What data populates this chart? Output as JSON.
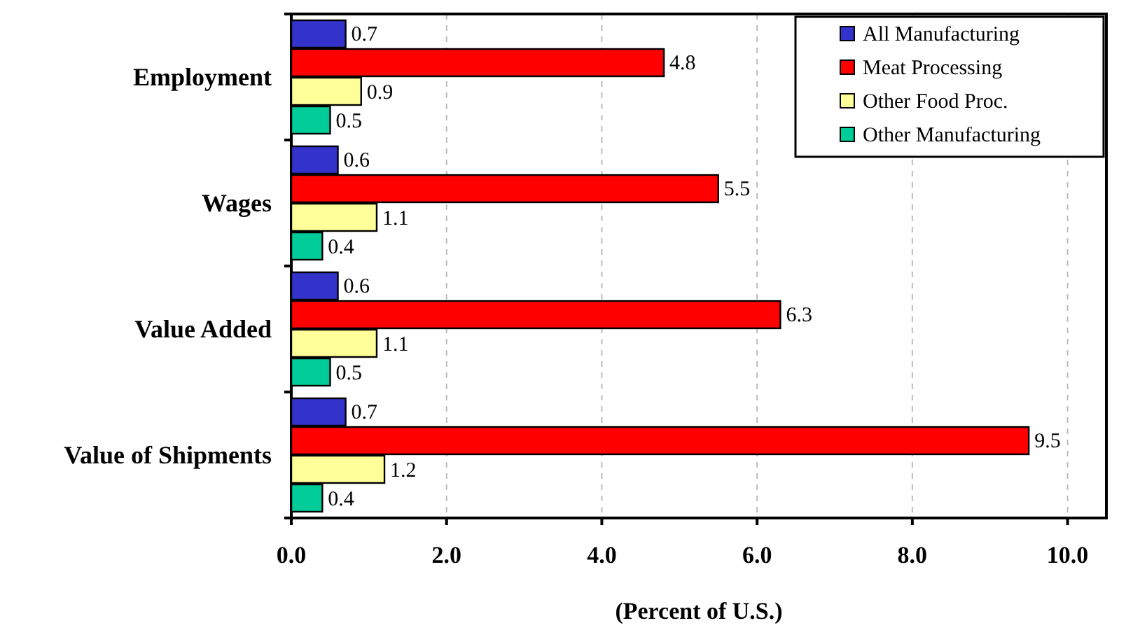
{
  "chart_data": {
    "type": "bar",
    "orientation": "horizontal",
    "xlabel": "(Percent of U.S.)",
    "categories": [
      "Employment",
      "Wages",
      "Value Added",
      "Value of Shipments"
    ],
    "series": [
      {
        "name": "All Manufacturing",
        "color": "#3333cc",
        "values": [
          0.7,
          0.6,
          0.6,
          0.7
        ]
      },
      {
        "name": "Meat Processing",
        "color": "#ff0000",
        "values": [
          4.8,
          5.5,
          6.3,
          9.5
        ]
      },
      {
        "name": "Other Food Proc.",
        "color": "#ffff99",
        "values": [
          0.9,
          1.1,
          1.1,
          1.2
        ]
      },
      {
        "name": "Other Manufacturing",
        "color": "#00cc99",
        "values": [
          0.5,
          0.4,
          0.5,
          0.4
        ]
      }
    ],
    "xlim": [
      0,
      10.5
    ],
    "xticks": [
      {
        "value": 0,
        "label": "0.0"
      },
      {
        "value": 2,
        "label": "2.0"
      },
      {
        "value": 4,
        "label": "4.0"
      },
      {
        "value": 6,
        "label": "6.0"
      },
      {
        "value": 8,
        "label": "8.0"
      },
      {
        "value": 10,
        "label": "10.0"
      }
    ],
    "grid": "x",
    "legend": "top right",
    "data_labels": true
  }
}
